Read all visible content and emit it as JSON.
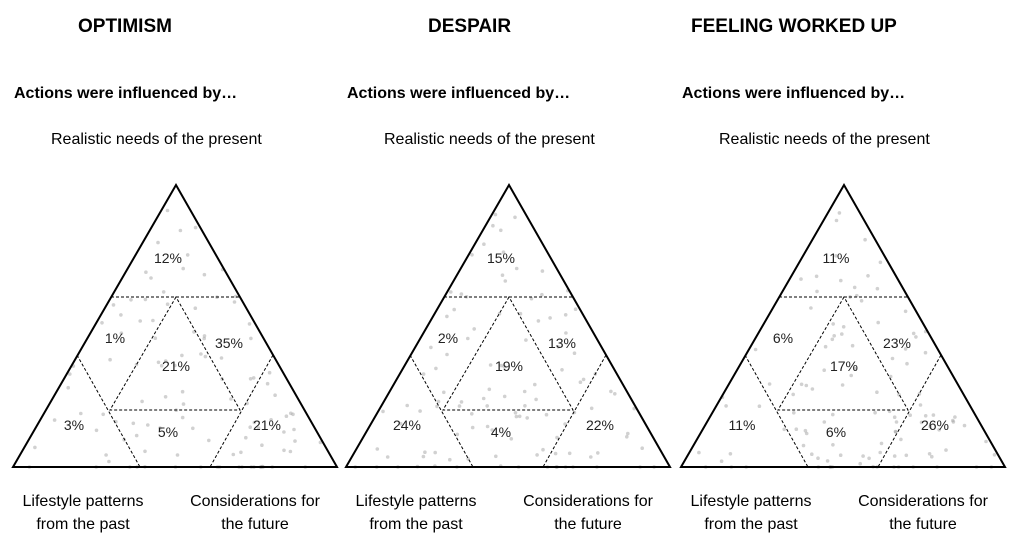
{
  "common": {
    "subtitle": "Actions were influenced by…",
    "top_vertex": "Realistic needs of the present",
    "bottom_left": [
      "Lifestyle patterns",
      "from the past"
    ],
    "bottom_right": [
      "Considerations for",
      "the future"
    ]
  },
  "panels": [
    {
      "title": "OPTIMISM",
      "regions": {
        "top": "12%",
        "mid_left": "1%",
        "center": "21%",
        "mid_right": "35%",
        "bottom_left": "3%",
        "bottom_center": "5%",
        "bottom_right": "21%"
      }
    },
    {
      "title": "DESPAIR",
      "regions": {
        "top": "15%",
        "mid_left": "2%",
        "center": "19%",
        "mid_right": "13%",
        "bottom_left": "24%",
        "bottom_center": "4%",
        "bottom_right": "22%"
      }
    },
    {
      "title": "FEELING WORKED UP",
      "regions": {
        "top": "11%",
        "mid_left": "6%",
        "center": "17%",
        "mid_right": "23%",
        "bottom_left": "11%",
        "bottom_center": "6%",
        "bottom_right": "26%"
      }
    }
  ]
}
